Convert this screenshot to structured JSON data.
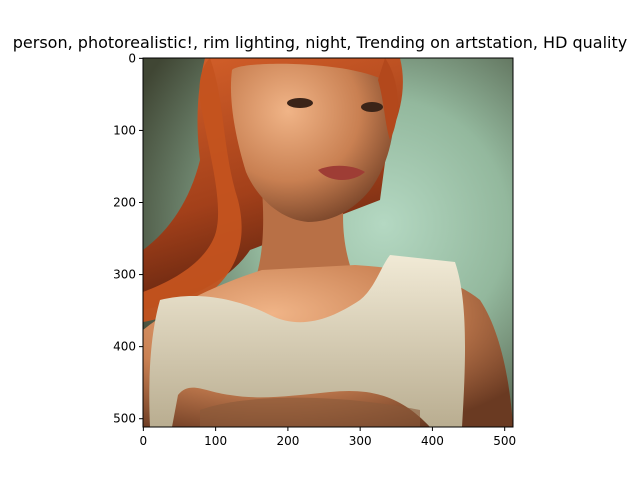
{
  "figure": {
    "title": "person,  photorealistic!, rim lighting, night, Trending on artstation, HD quality",
    "x_ticks": [
      "0",
      "100",
      "200",
      "300",
      "400",
      "500"
    ],
    "y_ticks": [
      "0",
      "100",
      "200",
      "300",
      "400",
      "500"
    ],
    "xlim": [
      -0.5,
      511.5
    ],
    "ylim": [
      511.5,
      -0.5
    ]
  },
  "image": {
    "subject": "portrait-of-woman-with-red-hair-in-white-top",
    "palette": {
      "background_teal": "#9fc6ae",
      "background_dark": "#4a5140",
      "hair": "#b3481c",
      "skin": "#d9956a",
      "top": "#e4ddc7"
    }
  }
}
